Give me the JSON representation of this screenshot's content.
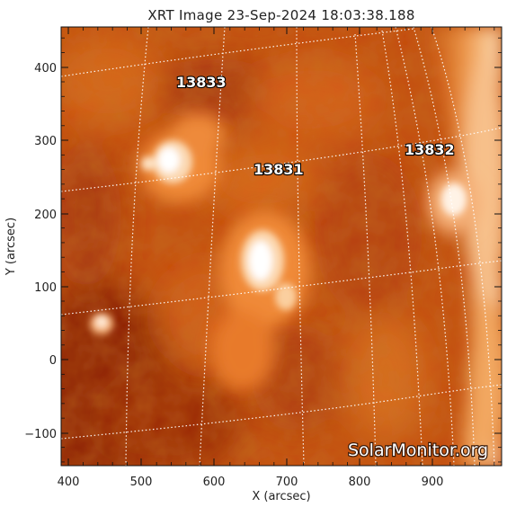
{
  "image": {
    "title": "XRT Image 23-Sep-2024 18:03:38.188",
    "xlabel": "X (arcsec)",
    "ylabel": "Y (arcsec)",
    "x_ticks": [
      "400",
      "500",
      "600",
      "700",
      "800",
      "900"
    ],
    "y_ticks": [
      "400",
      "300",
      "200",
      "100",
      "0",
      "−100"
    ],
    "x_range": [
      390,
      990
    ],
    "y_range": [
      -145,
      455
    ],
    "colormap": "hot (X-ray, orange/white)",
    "grid": "heliographic, dotted white",
    "active_regions": [
      "13833",
      "13831",
      "13832"
    ],
    "watermark": "SolarMonitor.org"
  }
}
